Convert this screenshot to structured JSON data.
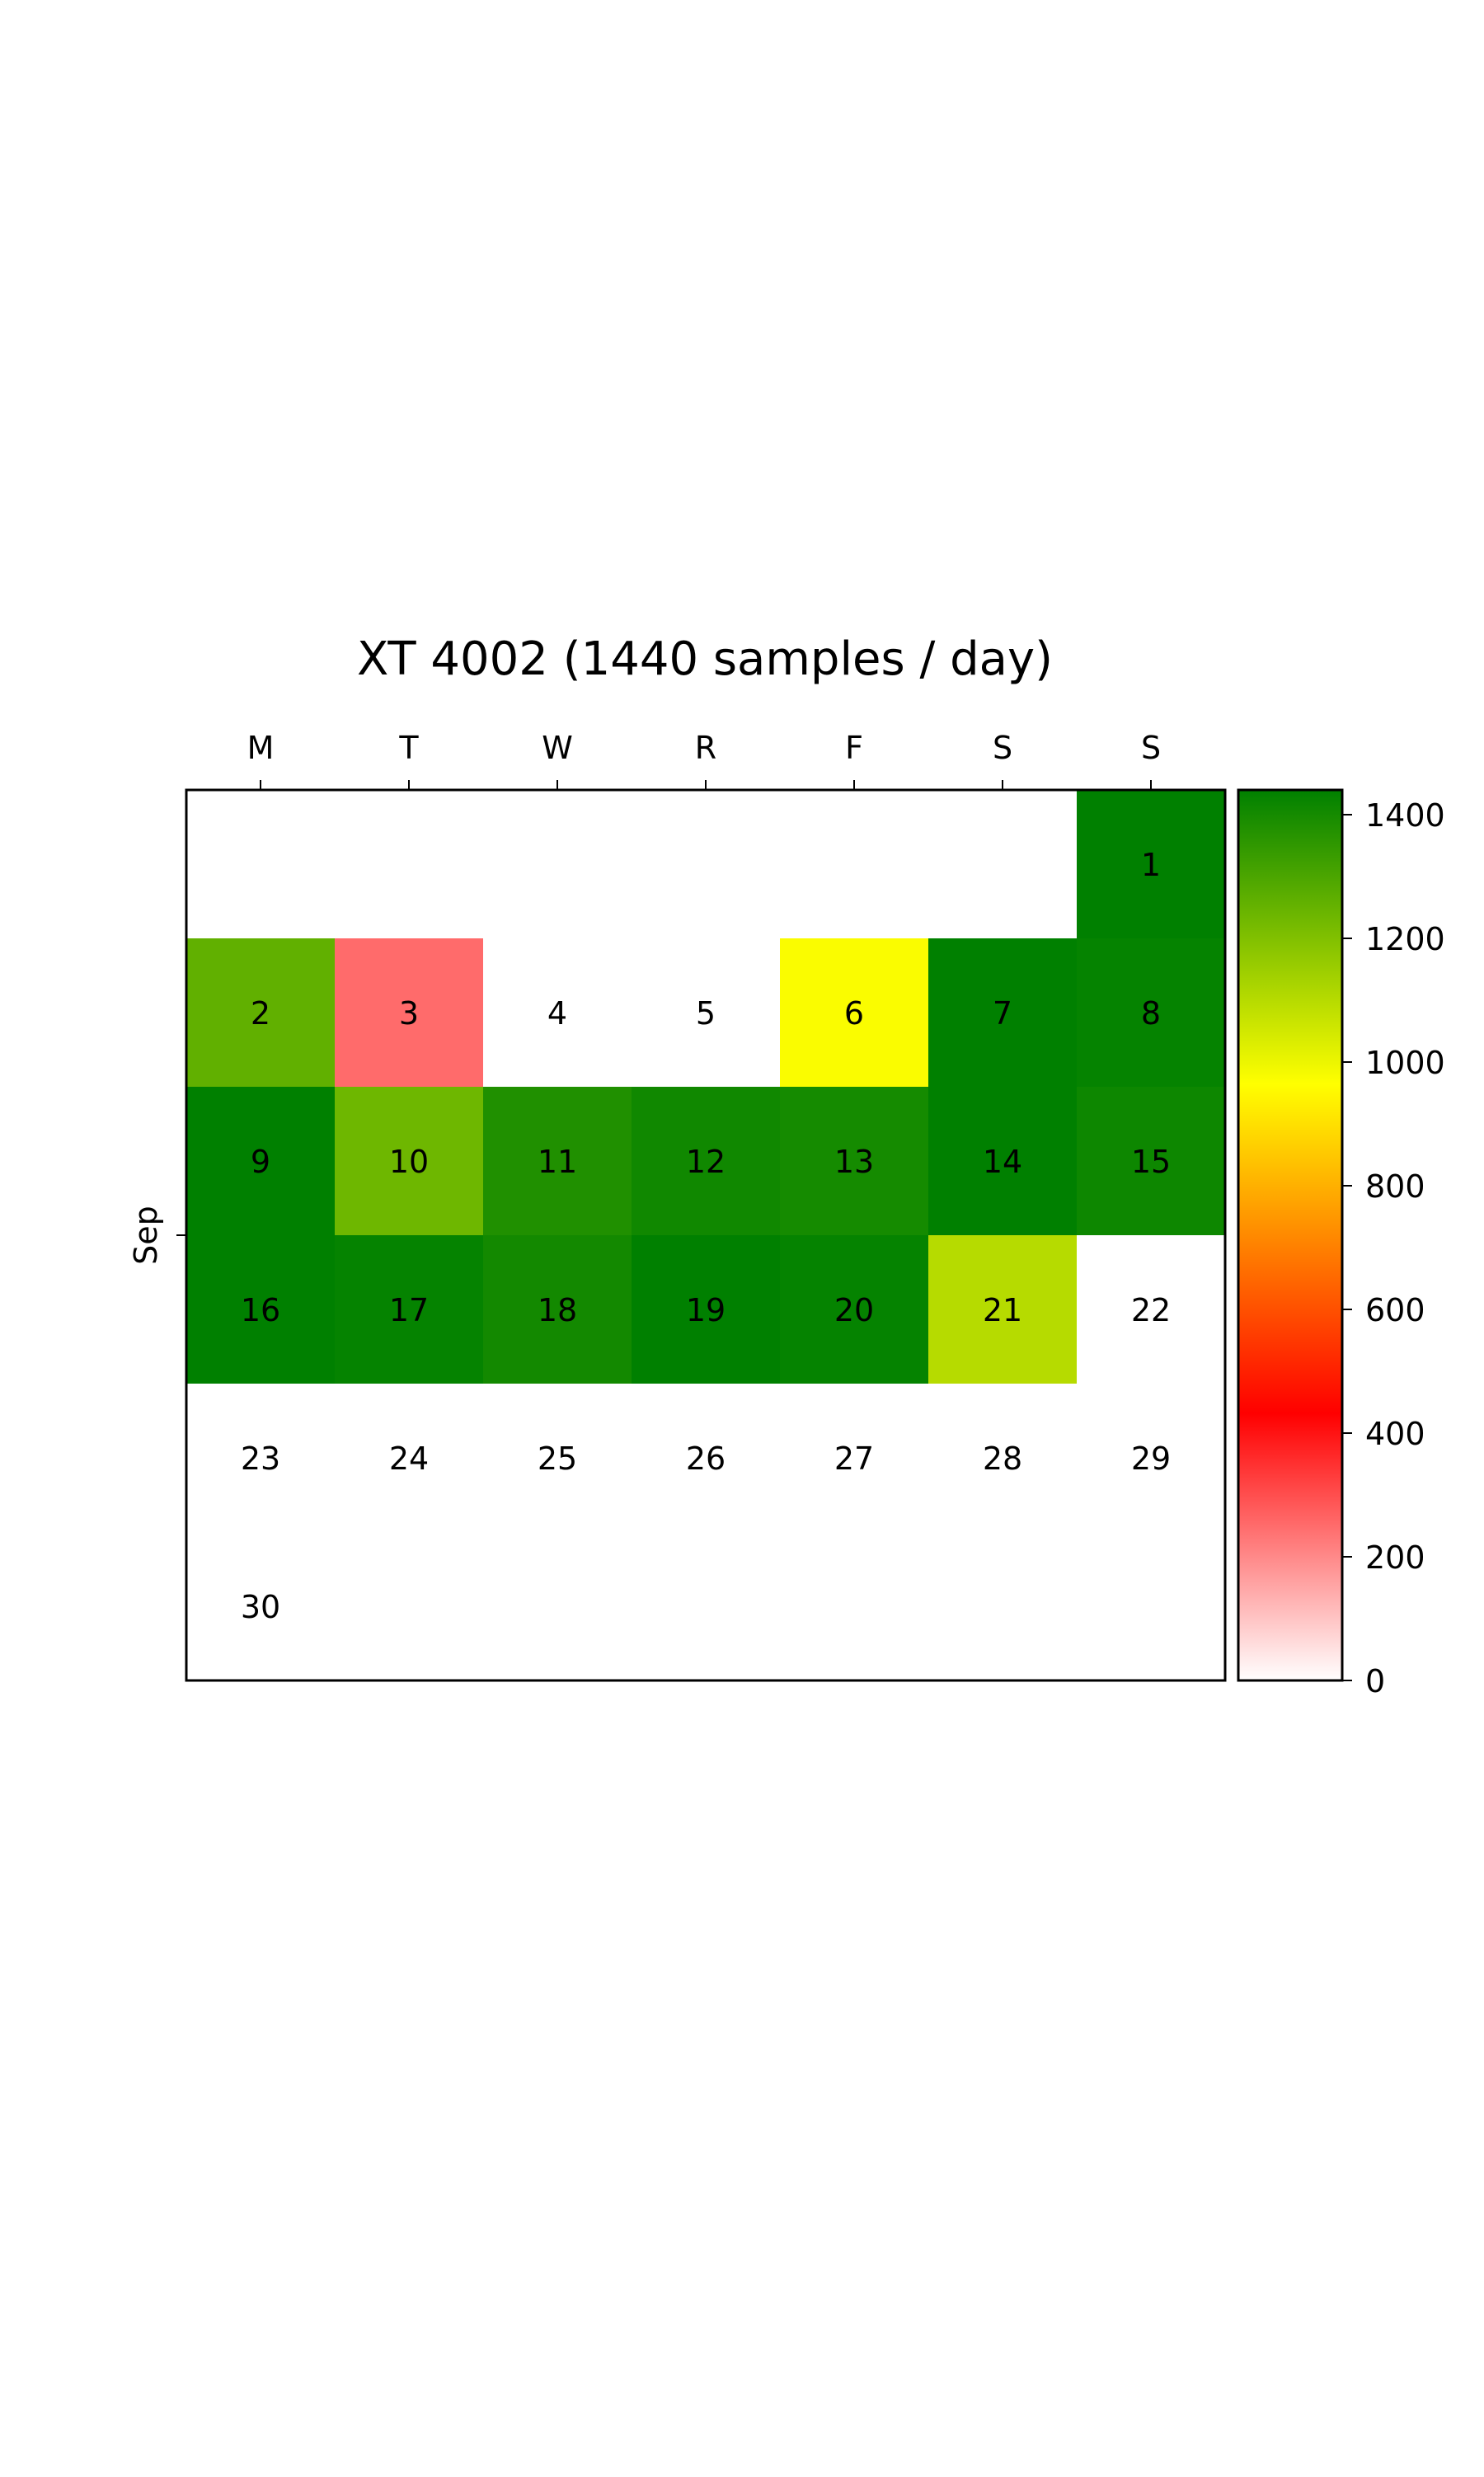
{
  "chart_data": {
    "type": "heatmap",
    "title": "XT 4002 (1440 samples / day)",
    "xlabel": "",
    "ylabel": "Sep",
    "weekday_labels": [
      "M",
      "T",
      "W",
      "R",
      "F",
      "S",
      "S"
    ],
    "month_label": "Sep",
    "colorbar": {
      "range": [
        0,
        1440
      ],
      "ticks": [
        0,
        200,
        400,
        600,
        800,
        1000,
        1200,
        1400
      ],
      "colors": [
        "#ffffff",
        "#ff0000",
        "#ffff00",
        "#008000"
      ]
    },
    "days": [
      {
        "label": "1",
        "week": 0,
        "weekday": 6,
        "value": 1440
      },
      {
        "label": "2",
        "week": 1,
        "weekday": 0,
        "value": 1260
      },
      {
        "label": "3",
        "week": 1,
        "weekday": 1,
        "value": 250
      },
      {
        "label": "4",
        "week": 1,
        "weekday": 2,
        "value": null
      },
      {
        "label": "5",
        "week": 1,
        "weekday": 3,
        "value": null
      },
      {
        "label": "6",
        "week": 1,
        "weekday": 4,
        "value": 975
      },
      {
        "label": "7",
        "week": 1,
        "weekday": 5,
        "value": 1440
      },
      {
        "label": "8",
        "week": 1,
        "weekday": 6,
        "value": 1430
      },
      {
        "label": "9",
        "week": 2,
        "weekday": 0,
        "value": 1440
      },
      {
        "label": "10",
        "week": 2,
        "weekday": 1,
        "value": 1235
      },
      {
        "label": "11",
        "week": 2,
        "weekday": 2,
        "value": 1380
      },
      {
        "label": "12",
        "week": 2,
        "weekday": 3,
        "value": 1410
      },
      {
        "label": "13",
        "week": 2,
        "weekday": 4,
        "value": 1400
      },
      {
        "label": "14",
        "week": 2,
        "weekday": 5,
        "value": 1440
      },
      {
        "label": "15",
        "week": 2,
        "weekday": 6,
        "value": 1415
      },
      {
        "label": "16",
        "week": 3,
        "weekday": 0,
        "value": 1440
      },
      {
        "label": "17",
        "week": 3,
        "weekday": 1,
        "value": 1430
      },
      {
        "label": "18",
        "week": 3,
        "weekday": 2,
        "value": 1405
      },
      {
        "label": "19",
        "week": 3,
        "weekday": 3,
        "value": 1440
      },
      {
        "label": "20",
        "week": 3,
        "weekday": 4,
        "value": 1430
      },
      {
        "label": "21",
        "week": 3,
        "weekday": 5,
        "value": 1100
      },
      {
        "label": "22",
        "week": 3,
        "weekday": 6,
        "value": null
      },
      {
        "label": "23",
        "week": 4,
        "weekday": 0,
        "value": null
      },
      {
        "label": "24",
        "week": 4,
        "weekday": 1,
        "value": null
      },
      {
        "label": "25",
        "week": 4,
        "weekday": 2,
        "value": null
      },
      {
        "label": "26",
        "week": 4,
        "weekday": 3,
        "value": null
      },
      {
        "label": "27",
        "week": 4,
        "weekday": 4,
        "value": null
      },
      {
        "label": "28",
        "week": 4,
        "weekday": 5,
        "value": null
      },
      {
        "label": "29",
        "week": 4,
        "weekday": 6,
        "value": null
      },
      {
        "label": "30",
        "week": 5,
        "weekday": 0,
        "value": null
      }
    ]
  }
}
